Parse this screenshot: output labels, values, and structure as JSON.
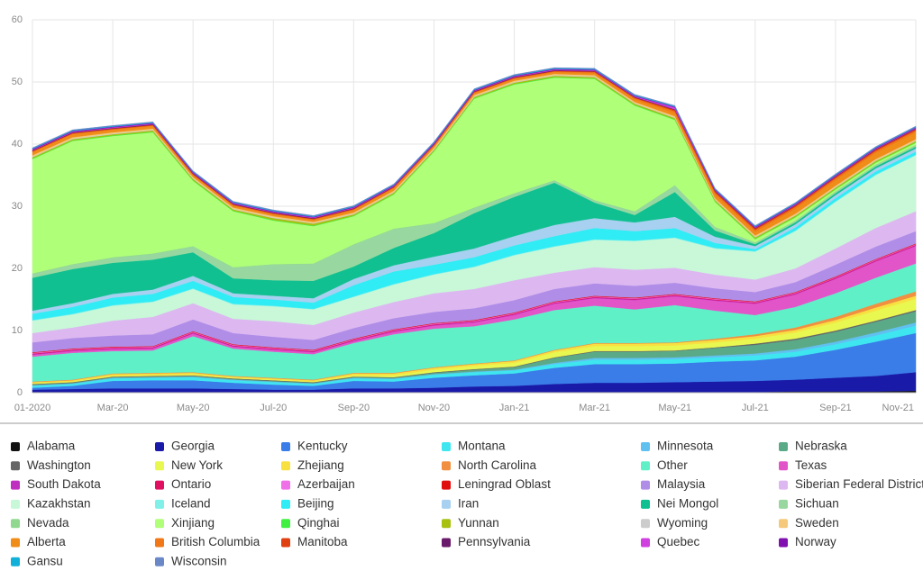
{
  "chart_data": {
    "type": "stacked-area",
    "categories": [
      "01-2020",
      null,
      "Mar-20",
      null,
      "May-20",
      null,
      "Jul-20",
      null,
      "Sep-20",
      null,
      "Nov-20",
      null,
      "Jan-21",
      null,
      "Mar-21",
      null,
      "May-21",
      null,
      "Jul-21",
      null,
      "Sep-21",
      null,
      "Nov-21"
    ],
    "ylim": [
      0,
      60
    ],
    "yticks": [
      0,
      10,
      20,
      30,
      40,
      50,
      60
    ],
    "grid": true,
    "series": [
      {
        "name": "Alabama",
        "color": "#111111",
        "values": [
          0.1,
          0.1,
          0.1,
          0.1,
          0.1,
          0.1,
          0.1,
          0.1,
          0.1,
          0.1,
          0.1,
          0.1,
          0.1,
          0.1,
          0.1,
          0.1,
          0.1,
          0.1,
          0.1,
          0.2,
          0.2,
          0.2,
          0.3
        ]
      },
      {
        "name": "Georgia",
        "color": "#1a1aa8",
        "values": [
          0.4,
          0.5,
          0.6,
          0.6,
          0.6,
          0.5,
          0.4,
          0.4,
          0.6,
          0.6,
          0.7,
          0.9,
          1.0,
          1.3,
          1.5,
          1.5,
          1.6,
          1.7,
          1.8,
          1.9,
          2.2,
          2.5,
          3.0
        ]
      },
      {
        "name": "Kentucky",
        "color": "#3a7ce8",
        "values": [
          0.3,
          0.5,
          1.2,
          1.3,
          1.3,
          1.0,
          0.8,
          0.6,
          1.2,
          1.1,
          1.6,
          1.8,
          2.0,
          2.6,
          3.0,
          3.0,
          3.0,
          3.2,
          3.3,
          3.7,
          4.5,
          5.5,
          6.3
        ]
      },
      {
        "name": "Montana",
        "color": "#3ee6f0",
        "values": [
          0.3,
          0.3,
          0.4,
          0.4,
          0.5,
          0.4,
          0.4,
          0.3,
          0.4,
          0.4,
          0.5,
          0.5,
          0.5,
          0.6,
          0.7,
          0.7,
          0.7,
          0.7,
          0.8,
          0.8,
          0.9,
          1.0,
          1.2
        ]
      },
      {
        "name": "Minnesota",
        "color": "#60c0f0",
        "values": [
          0.1,
          0.1,
          0.1,
          0.1,
          0.1,
          0.1,
          0.1,
          0.1,
          0.1,
          0.1,
          0.1,
          0.1,
          0.1,
          0.2,
          0.3,
          0.3,
          0.3,
          0.3,
          0.3,
          0.4,
          0.4,
          0.5,
          0.5
        ]
      },
      {
        "name": "Nebraska",
        "color": "#5aaa88",
        "values": [
          0.1,
          0.1,
          0.1,
          0.1,
          0.1,
          0.1,
          0.1,
          0.1,
          0.1,
          0.1,
          0.2,
          0.3,
          0.4,
          0.8,
          1.0,
          1.0,
          1.0,
          1.2,
          1.4,
          1.5,
          1.6,
          1.7,
          1.8
        ]
      },
      {
        "name": "Washington",
        "color": "#666666",
        "values": [
          0.1,
          0.1,
          0.1,
          0.1,
          0.1,
          0.1,
          0.1,
          0.1,
          0.1,
          0.1,
          0.1,
          0.1,
          0.1,
          0.1,
          0.1,
          0.1,
          0.1,
          0.1,
          0.2,
          0.2,
          0.2,
          0.2,
          0.2
        ]
      },
      {
        "name": "New York",
        "color": "#e8f850",
        "values": [
          0.1,
          0.1,
          0.1,
          0.1,
          0.1,
          0.1,
          0.1,
          0.1,
          0.2,
          0.3,
          0.4,
          0.5,
          0.6,
          0.8,
          0.8,
          0.8,
          0.8,
          0.8,
          0.8,
          1.0,
          1.3,
          1.6,
          1.8
        ]
      },
      {
        "name": "Zhejiang",
        "color": "#f8e040",
        "values": [
          0.2,
          0.2,
          0.3,
          0.3,
          0.3,
          0.2,
          0.2,
          0.2,
          0.3,
          0.3,
          0.3,
          0.3,
          0.3,
          0.3,
          0.4,
          0.4,
          0.4,
          0.4,
          0.4,
          0.4,
          0.4,
          0.5,
          0.5
        ]
      },
      {
        "name": "North Carolina",
        "color": "#f09040",
        "values": [
          0.1,
          0.1,
          0.1,
          0.1,
          0.1,
          0.1,
          0.1,
          0.1,
          0.1,
          0.1,
          0.1,
          0.1,
          0.1,
          0.1,
          0.1,
          0.1,
          0.1,
          0.2,
          0.3,
          0.4,
          0.5,
          0.6,
          0.7
        ]
      },
      {
        "name": "Other",
        "color": "#60f0c8",
        "values": [
          4.0,
          4.3,
          3.6,
          3.6,
          5.8,
          4.4,
          4.2,
          4.1,
          4.8,
          6.2,
          6.2,
          6.0,
          6.6,
          6.4,
          6.0,
          5.4,
          6.0,
          4.5,
          3.1,
          3.3,
          3.8,
          4.2,
          4.5
        ]
      },
      {
        "name": "Texas",
        "color": "#e255c8",
        "values": [
          0.3,
          0.3,
          0.3,
          0.3,
          0.4,
          0.3,
          0.3,
          0.3,
          0.3,
          0.4,
          0.5,
          0.6,
          0.7,
          1.0,
          1.2,
          1.5,
          1.4,
          1.6,
          1.8,
          2.0,
          2.3,
          2.6,
          2.8
        ]
      },
      {
        "name": "South Dakota",
        "color": "#c030c0",
        "values": [
          0.1,
          0.1,
          0.1,
          0.1,
          0.1,
          0.1,
          0.1,
          0.1,
          0.1,
          0.1,
          0.1,
          0.1,
          0.1,
          0.1,
          0.1,
          0.1,
          0.1,
          0.1,
          0.1,
          0.1,
          0.1,
          0.1,
          0.1
        ]
      },
      {
        "name": "Ontario",
        "color": "#e01060",
        "values": [
          0.1,
          0.1,
          0.1,
          0.1,
          0.1,
          0.1,
          0.1,
          0.1,
          0.1,
          0.1,
          0.1,
          0.1,
          0.1,
          0.1,
          0.1,
          0.1,
          0.1,
          0.1,
          0.1,
          0.1,
          0.1,
          0.1,
          0.1
        ]
      },
      {
        "name": "Azerbaijan",
        "color": "#f070e8",
        "values": [
          0.1,
          0.1,
          0.1,
          0.1,
          0.1,
          0.1,
          0.1,
          0.1,
          0.1,
          0.1,
          0.1,
          0.1,
          0.1,
          0.1,
          0.1,
          0.1,
          0.1,
          0.1,
          0.1,
          0.1,
          0.1,
          0.1,
          0.1
        ]
      },
      {
        "name": "Leningrad Oblast",
        "color": "#e01010",
        "values": [
          0.1,
          0.1,
          0.1,
          0.1,
          0.1,
          0.1,
          0.1,
          0.1,
          0.1,
          0.1,
          0.1,
          0.1,
          0.1,
          0.1,
          0.1,
          0.1,
          0.1,
          0.1,
          0.1,
          0.1,
          0.1,
          0.1,
          0.1
        ]
      },
      {
        "name": "Malaysia",
        "color": "#b08ee8",
        "values": [
          1.6,
          1.7,
          1.8,
          1.9,
          1.9,
          1.8,
          1.7,
          1.6,
          1.7,
          1.8,
          1.8,
          1.9,
          2.0,
          2.0,
          2.0,
          1.9,
          1.8,
          1.6,
          1.5,
          1.6,
          1.9,
          2.0,
          2.0
        ]
      },
      {
        "name": "Siberian Federal District",
        "color": "#ddb8f0",
        "values": [
          1.5,
          1.7,
          2.4,
          2.8,
          2.6,
          2.3,
          2.5,
          2.4,
          2.5,
          2.6,
          3.0,
          3.1,
          3.2,
          2.6,
          2.6,
          2.6,
          2.4,
          2.2,
          2.0,
          2.2,
          2.6,
          3.0,
          3.2
        ]
      },
      {
        "name": "Kazakhstan",
        "color": "#c8f8d8",
        "values": [
          2.0,
          2.1,
          2.4,
          2.4,
          2.3,
          2.3,
          2.4,
          2.5,
          2.5,
          2.8,
          3.0,
          3.5,
          4.0,
          4.2,
          4.4,
          4.6,
          4.8,
          4.2,
          4.5,
          6.0,
          7.5,
          8.5,
          9.0
        ]
      },
      {
        "name": "Iceland",
        "color": "#80f0e8",
        "values": [
          0.1,
          0.1,
          0.1,
          0.1,
          0.1,
          0.1,
          0.1,
          0.1,
          0.1,
          0.1,
          0.1,
          0.1,
          0.1,
          0.1,
          0.1,
          0.1,
          0.1,
          0.1,
          0.1,
          0.1,
          0.1,
          0.1,
          0.1
        ]
      },
      {
        "name": "Beijing",
        "color": "#30ecf5",
        "values": [
          1.0,
          1.1,
          1.2,
          1.2,
          1.2,
          1.1,
          1.0,
          1.0,
          1.8,
          2.0,
          1.5,
          1.5,
          1.5,
          1.6,
          1.8,
          1.5,
          1.5,
          0.8,
          0.3,
          0.5,
          0.5,
          0.5,
          0.5
        ]
      },
      {
        "name": "Iran",
        "color": "#a8d0f0",
        "values": [
          0.5,
          0.6,
          0.6,
          0.7,
          0.8,
          0.6,
          0.6,
          0.7,
          1.0,
          1.0,
          1.3,
          1.4,
          1.5,
          1.8,
          1.6,
          1.4,
          1.8,
          1.0,
          0.5,
          0.5,
          0.5,
          0.5,
          0.5
        ]
      },
      {
        "name": "Nei Mongol",
        "color": "#10c090",
        "values": [
          5.3,
          5.5,
          5.0,
          4.8,
          3.8,
          2.4,
          2.5,
          2.8,
          2.0,
          2.8,
          3.8,
          5.7,
          6.3,
          6.8,
          2.5,
          1.2,
          4.0,
          1.0,
          0.3,
          0.3,
          0.3,
          0.3,
          0.3
        ]
      },
      {
        "name": "Sichuan",
        "color": "#98d8a0",
        "values": [
          0.6,
          0.7,
          0.8,
          0.9,
          0.9,
          1.7,
          2.5,
          2.7,
          3.5,
          3.0,
          1.5,
          0.8,
          0.5,
          0.3,
          0.3,
          0.5,
          1.0,
          0.5,
          0.2,
          0.2,
          0.2,
          0.2,
          0.2
        ]
      },
      {
        "name": "Nevada",
        "color": "#90d890",
        "values": [
          0.1,
          0.1,
          0.1,
          0.1,
          0.1,
          0.1,
          0.1,
          0.1,
          0.1,
          0.1,
          0.1,
          0.1,
          0.1,
          0.1,
          0.1,
          0.1,
          0.1,
          0.1,
          0.1,
          0.1,
          0.1,
          0.1,
          0.1
        ]
      },
      {
        "name": "Xinjiang",
        "color": "#b0ff78",
        "values": [
          18.4,
          19.8,
          19.5,
          19.5,
          10.5,
          9.0,
          7.0,
          6.0,
          4.5,
          5.5,
          11.5,
          17.5,
          17.5,
          16.5,
          19.5,
          17.0,
          10.5,
          4.0,
          0.5,
          0.5,
          0.3,
          0.3,
          0.3
        ]
      },
      {
        "name": "Qinghai",
        "color": "#40f040",
        "values": [
          0.1,
          0.1,
          0.1,
          0.1,
          0.1,
          0.1,
          0.1,
          0.1,
          0.1,
          0.1,
          0.1,
          0.1,
          0.1,
          0.1,
          0.1,
          0.1,
          0.1,
          0.1,
          0.1,
          0.1,
          0.1,
          0.1,
          0.1
        ]
      },
      {
        "name": "Yunnan",
        "color": "#a8c010",
        "values": [
          0.2,
          0.2,
          0.2,
          0.2,
          0.2,
          0.2,
          0.3,
          0.3,
          0.2,
          0.2,
          0.2,
          0.2,
          0.2,
          0.2,
          0.2,
          0.2,
          0.2,
          0.2,
          0.2,
          0.2,
          0.2,
          0.2,
          0.2
        ]
      },
      {
        "name": "Wyoming",
        "color": "#cccccc",
        "values": [
          0.1,
          0.1,
          0.1,
          0.1,
          0.1,
          0.1,
          0.1,
          0.1,
          0.1,
          0.1,
          0.1,
          0.1,
          0.1,
          0.1,
          0.1,
          0.1,
          0.1,
          0.1,
          0.1,
          0.1,
          0.1,
          0.1,
          0.1
        ]
      },
      {
        "name": "Sweden",
        "color": "#f5c87a",
        "values": [
          0.2,
          0.2,
          0.2,
          0.2,
          0.2,
          0.2,
          0.2,
          0.2,
          0.2,
          0.2,
          0.2,
          0.2,
          0.2,
          0.2,
          0.2,
          0.2,
          0.2,
          0.2,
          0.2,
          0.2,
          0.2,
          0.2,
          0.2
        ]
      },
      {
        "name": "Alberta",
        "color": "#f08c18",
        "values": [
          0.5,
          0.5,
          0.4,
          0.4,
          0.3,
          0.3,
          0.3,
          0.3,
          0.4,
          0.4,
          0.3,
          0.3,
          0.3,
          0.3,
          0.3,
          0.4,
          0.5,
          0.6,
          0.6,
          0.8,
          0.9,
          1.0,
          1.1
        ]
      },
      {
        "name": "British Columbia",
        "color": "#f07818",
        "values": [
          0.1,
          0.1,
          0.1,
          0.1,
          0.1,
          0.1,
          0.1,
          0.1,
          0.1,
          0.1,
          0.1,
          0.1,
          0.1,
          0.1,
          0.2,
          0.2,
          0.3,
          0.3,
          0.3,
          0.3,
          0.3,
          0.3,
          0.3
        ]
      },
      {
        "name": "Manitoba",
        "color": "#e04010",
        "values": [
          0.1,
          0.1,
          0.1,
          0.1,
          0.1,
          0.1,
          0.1,
          0.1,
          0.1,
          0.1,
          0.1,
          0.1,
          0.1,
          0.1,
          0.1,
          0.1,
          0.2,
          0.2,
          0.2,
          0.2,
          0.2,
          0.2,
          0.2
        ]
      },
      {
        "name": "Pennsylvania",
        "color": "#6a1a6a",
        "values": [
          0.1,
          0.1,
          0.1,
          0.1,
          0.1,
          0.1,
          0.1,
          0.1,
          0.1,
          0.1,
          0.1,
          0.1,
          0.1,
          0.1,
          0.1,
          0.1,
          0.1,
          0.1,
          0.1,
          0.1,
          0.1,
          0.1,
          0.1
        ]
      },
      {
        "name": "Quebec",
        "color": "#d040e0",
        "values": [
          0.1,
          0.1,
          0.1,
          0.1,
          0.1,
          0.1,
          0.1,
          0.1,
          0.1,
          0.1,
          0.1,
          0.1,
          0.1,
          0.1,
          0.1,
          0.1,
          0.3,
          0.1,
          0.1,
          0.1,
          0.1,
          0.1,
          0.1
        ]
      },
      {
        "name": "Norway",
        "color": "#8010b0",
        "values": [
          0.1,
          0.1,
          0.1,
          0.1,
          0.1,
          0.1,
          0.1,
          0.1,
          0.1,
          0.1,
          0.1,
          0.1,
          0.1,
          0.1,
          0.1,
          0.1,
          0.1,
          0.1,
          0.1,
          0.1,
          0.1,
          0.1,
          0.1
        ]
      },
      {
        "name": "Gansu",
        "color": "#10b0d8",
        "values": [
          0.1,
          0.1,
          0.1,
          0.1,
          0.1,
          0.1,
          0.1,
          0.1,
          0.1,
          0.1,
          0.1,
          0.1,
          0.1,
          0.1,
          0.1,
          0.1,
          0.1,
          0.1,
          0.1,
          0.1,
          0.1,
          0.1,
          0.1
        ]
      },
      {
        "name": "Wisconsin",
        "color": "#6a88c8",
        "values": [
          0.1,
          0.1,
          0.1,
          0.1,
          0.1,
          0.1,
          0.1,
          0.1,
          0.1,
          0.1,
          0.1,
          0.1,
          0.1,
          0.1,
          0.1,
          0.1,
          0.1,
          0.1,
          0.1,
          0.1,
          0.1,
          0.1,
          0.1
        ]
      }
    ]
  }
}
